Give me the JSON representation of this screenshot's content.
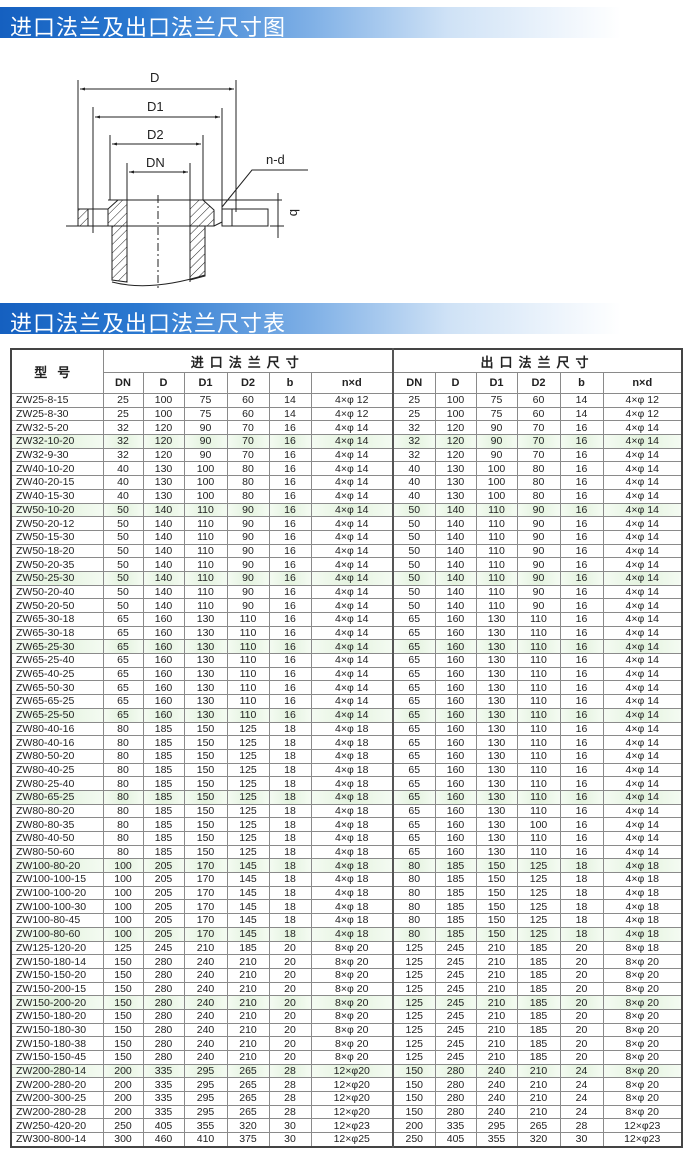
{
  "section1": {
    "title": "进口法兰及出口法兰尺寸图"
  },
  "diagram": {
    "labels": {
      "D": "D",
      "D1": "D1",
      "D2": "D2",
      "DN": "DN",
      "nd": "n-d",
      "b": "b"
    }
  },
  "section2": {
    "title": "进口法兰及出口法兰尺寸表"
  },
  "colors": {
    "banner": "#1560c0",
    "highlight_row": "#e4f3df"
  },
  "table": {
    "model_header": "型号",
    "inlet_header": "进口法兰尺寸",
    "outlet_header": "出口法兰尺寸",
    "columns": [
      "DN",
      "D",
      "D1",
      "D2",
      "b",
      "n×d",
      "DN",
      "D",
      "D1",
      "D2",
      "b",
      "n×d"
    ],
    "rows": [
      [
        "ZW25-8-15",
        "25",
        "100",
        "75",
        "60",
        "14",
        "4×φ 12",
        "25",
        "100",
        "75",
        "60",
        "14",
        "4×φ 12"
      ],
      [
        "ZW25-8-30",
        "25",
        "100",
        "75",
        "60",
        "14",
        "4×φ 12",
        "25",
        "100",
        "75",
        "60",
        "14",
        "4×φ 12"
      ],
      [
        "ZW32-5-20",
        "32",
        "120",
        "90",
        "70",
        "16",
        "4×φ 14",
        "32",
        "120",
        "90",
        "70",
        "16",
        "4×φ 14"
      ],
      [
        "ZW32-10-20",
        "32",
        "120",
        "90",
        "70",
        "16",
        "4×φ 14",
        "32",
        "120",
        "90",
        "70",
        "16",
        "4×φ 14"
      ],
      [
        "ZW32-9-30",
        "32",
        "120",
        "90",
        "70",
        "16",
        "4×φ 14",
        "32",
        "120",
        "90",
        "70",
        "16",
        "4×φ 14"
      ],
      [
        "ZW40-10-20",
        "40",
        "130",
        "100",
        "80",
        "16",
        "4×φ 14",
        "40",
        "130",
        "100",
        "80",
        "16",
        "4×φ 14"
      ],
      [
        "ZW40-20-15",
        "40",
        "130",
        "100",
        "80",
        "16",
        "4×φ 14",
        "40",
        "130",
        "100",
        "80",
        "16",
        "4×φ 14"
      ],
      [
        "ZW40-15-30",
        "40",
        "130",
        "100",
        "80",
        "16",
        "4×φ 14",
        "40",
        "130",
        "100",
        "80",
        "16",
        "4×φ 14"
      ],
      [
        "ZW50-10-20",
        "50",
        "140",
        "110",
        "90",
        "16",
        "4×φ 14",
        "50",
        "140",
        "110",
        "90",
        "16",
        "4×φ 14"
      ],
      [
        "ZW50-20-12",
        "50",
        "140",
        "110",
        "90",
        "16",
        "4×φ 14",
        "50",
        "140",
        "110",
        "90",
        "16",
        "4×φ 14"
      ],
      [
        "ZW50-15-30",
        "50",
        "140",
        "110",
        "90",
        "16",
        "4×φ 14",
        "50",
        "140",
        "110",
        "90",
        "16",
        "4×φ 14"
      ],
      [
        "ZW50-18-20",
        "50",
        "140",
        "110",
        "90",
        "16",
        "4×φ 14",
        "50",
        "140",
        "110",
        "90",
        "16",
        "4×φ 14"
      ],
      [
        "ZW50-20-35",
        "50",
        "140",
        "110",
        "90",
        "16",
        "4×φ 14",
        "50",
        "140",
        "110",
        "90",
        "16",
        "4×φ 14"
      ],
      [
        "ZW50-25-30",
        "50",
        "140",
        "110",
        "90",
        "16",
        "4×φ 14",
        "50",
        "140",
        "110",
        "90",
        "16",
        "4×φ 14"
      ],
      [
        "ZW50-20-40",
        "50",
        "140",
        "110",
        "90",
        "16",
        "4×φ 14",
        "50",
        "140",
        "110",
        "90",
        "16",
        "4×φ 14"
      ],
      [
        "ZW50-20-50",
        "50",
        "140",
        "110",
        "90",
        "16",
        "4×φ 14",
        "50",
        "140",
        "110",
        "90",
        "16",
        "4×φ 14"
      ],
      [
        "ZW65-30-18",
        "65",
        "160",
        "130",
        "110",
        "16",
        "4×φ 14",
        "65",
        "160",
        "130",
        "110",
        "16",
        "4×φ 14"
      ],
      [
        "ZW65-30-18",
        "65",
        "160",
        "130",
        "110",
        "16",
        "4×φ 14",
        "65",
        "160",
        "130",
        "110",
        "16",
        "4×φ 14"
      ],
      [
        "ZW65-25-30",
        "65",
        "160",
        "130",
        "110",
        "16",
        "4×φ 14",
        "65",
        "160",
        "130",
        "110",
        "16",
        "4×φ 14"
      ],
      [
        "ZW65-25-40",
        "65",
        "160",
        "130",
        "110",
        "16",
        "4×φ 14",
        "65",
        "160",
        "130",
        "110",
        "16",
        "4×φ 14"
      ],
      [
        "ZW65-40-25",
        "65",
        "160",
        "130",
        "110",
        "16",
        "4×φ 14",
        "65",
        "160",
        "130",
        "110",
        "16",
        "4×φ 14"
      ],
      [
        "ZW65-50-30",
        "65",
        "160",
        "130",
        "110",
        "16",
        "4×φ 14",
        "65",
        "160",
        "130",
        "110",
        "16",
        "4×φ 14"
      ],
      [
        "ZW65-65-25",
        "65",
        "160",
        "130",
        "110",
        "16",
        "4×φ 14",
        "65",
        "160",
        "130",
        "110",
        "16",
        "4×φ 14"
      ],
      [
        "ZW65-25-50",
        "65",
        "160",
        "130",
        "110",
        "16",
        "4×φ 14",
        "65",
        "160",
        "130",
        "110",
        "16",
        "4×φ 14"
      ],
      [
        "ZW80-40-16",
        "80",
        "185",
        "150",
        "125",
        "18",
        "4×φ 18",
        "65",
        "160",
        "130",
        "110",
        "16",
        "4×φ 14"
      ],
      [
        "ZW80-40-16",
        "80",
        "185",
        "150",
        "125",
        "18",
        "4×φ 18",
        "65",
        "160",
        "130",
        "110",
        "16",
        "4×φ 14"
      ],
      [
        "ZW80-50-20",
        "80",
        "185",
        "150",
        "125",
        "18",
        "4×φ 18",
        "65",
        "160",
        "130",
        "110",
        "16",
        "4×φ 14"
      ],
      [
        "ZW80-40-25",
        "80",
        "185",
        "150",
        "125",
        "18",
        "4×φ 18",
        "65",
        "160",
        "130",
        "110",
        "16",
        "4×φ 14"
      ],
      [
        "ZW80-25-40",
        "80",
        "185",
        "150",
        "125",
        "18",
        "4×φ 18",
        "65",
        "160",
        "130",
        "110",
        "16",
        "4×φ 14"
      ],
      [
        "ZW80-65-25",
        "80",
        "185",
        "150",
        "125",
        "18",
        "4×φ 18",
        "65",
        "160",
        "130",
        "110",
        "16",
        "4×φ 14"
      ],
      [
        "ZW80-80-20",
        "80",
        "185",
        "150",
        "125",
        "18",
        "4×φ 18",
        "65",
        "160",
        "130",
        "110",
        "16",
        "4×φ 14"
      ],
      [
        "ZW80-80-35",
        "80",
        "185",
        "150",
        "125",
        "18",
        "4×φ 18",
        "65",
        "160",
        "130",
        "100",
        "16",
        "4×φ 14"
      ],
      [
        "ZW80-40-50",
        "80",
        "185",
        "150",
        "125",
        "18",
        "4×φ 18",
        "65",
        "160",
        "130",
        "110",
        "16",
        "4×φ 14"
      ],
      [
        "ZW80-50-60",
        "80",
        "185",
        "150",
        "125",
        "18",
        "4×φ 18",
        "65",
        "160",
        "130",
        "110",
        "16",
        "4×φ 14"
      ],
      [
        "ZW100-80-20",
        "100",
        "205",
        "170",
        "145",
        "18",
        "4×φ 18",
        "80",
        "185",
        "150",
        "125",
        "18",
        "4×φ 18"
      ],
      [
        "ZW100-100-15",
        "100",
        "205",
        "170",
        "145",
        "18",
        "4×φ 18",
        "80",
        "185",
        "150",
        "125",
        "18",
        "4×φ 18"
      ],
      [
        "ZW100-100-20",
        "100",
        "205",
        "170",
        "145",
        "18",
        "4×φ 18",
        "80",
        "185",
        "150",
        "125",
        "18",
        "4×φ 18"
      ],
      [
        "ZW100-100-30",
        "100",
        "205",
        "170",
        "145",
        "18",
        "4×φ 18",
        "80",
        "185",
        "150",
        "125",
        "18",
        "4×φ 18"
      ],
      [
        "ZW100-80-45",
        "100",
        "205",
        "170",
        "145",
        "18",
        "4×φ 18",
        "80",
        "185",
        "150",
        "125",
        "18",
        "4×φ 18"
      ],
      [
        "ZW100-80-60",
        "100",
        "205",
        "170",
        "145",
        "18",
        "4×φ 18",
        "80",
        "185",
        "150",
        "125",
        "18",
        "4×φ 18"
      ],
      [
        "ZW125-120-20",
        "125",
        "245",
        "210",
        "185",
        "20",
        "8×φ 20",
        "125",
        "245",
        "210",
        "185",
        "20",
        "8×φ 18"
      ],
      [
        "ZW150-180-14",
        "150",
        "280",
        "240",
        "210",
        "20",
        "8×φ 20",
        "125",
        "245",
        "210",
        "185",
        "20",
        "8×φ 20"
      ],
      [
        "ZW150-150-20",
        "150",
        "280",
        "240",
        "210",
        "20",
        "8×φ 20",
        "125",
        "245",
        "210",
        "185",
        "20",
        "8×φ 20"
      ],
      [
        "ZW150-200-15",
        "150",
        "280",
        "240",
        "210",
        "20",
        "8×φ 20",
        "125",
        "245",
        "210",
        "185",
        "20",
        "8×φ 20"
      ],
      [
        "ZW150-200-20",
        "150",
        "280",
        "240",
        "210",
        "20",
        "8×φ 20",
        "125",
        "245",
        "210",
        "185",
        "20",
        "8×φ 20"
      ],
      [
        "ZW150-180-20",
        "150",
        "280",
        "240",
        "210",
        "20",
        "8×φ 20",
        "125",
        "245",
        "210",
        "185",
        "20",
        "8×φ 20"
      ],
      [
        "ZW150-180-30",
        "150",
        "280",
        "240",
        "210",
        "20",
        "8×φ 20",
        "125",
        "245",
        "210",
        "185",
        "20",
        "8×φ 20"
      ],
      [
        "ZW150-180-38",
        "150",
        "280",
        "240",
        "210",
        "20",
        "8×φ 20",
        "125",
        "245",
        "210",
        "185",
        "20",
        "8×φ 20"
      ],
      [
        "ZW150-150-45",
        "150",
        "280",
        "240",
        "210",
        "20",
        "8×φ 20",
        "125",
        "245",
        "210",
        "185",
        "20",
        "8×φ 20"
      ],
      [
        "ZW200-280-14",
        "200",
        "335",
        "295",
        "265",
        "28",
        "12×φ20",
        "150",
        "280",
        "240",
        "210",
        "24",
        "8×φ 20"
      ],
      [
        "ZW200-280-20",
        "200",
        "335",
        "295",
        "265",
        "28",
        "12×φ20",
        "150",
        "280",
        "240",
        "210",
        "24",
        "8×φ 20"
      ],
      [
        "ZW200-300-25",
        "200",
        "335",
        "295",
        "265",
        "28",
        "12×φ20",
        "150",
        "280",
        "240",
        "210",
        "24",
        "8×φ 20"
      ],
      [
        "ZW200-280-28",
        "200",
        "335",
        "295",
        "265",
        "28",
        "12×φ20",
        "150",
        "280",
        "240",
        "210",
        "24",
        "8×φ 20"
      ],
      [
        "ZW250-420-20",
        "250",
        "405",
        "355",
        "320",
        "30",
        "12×φ23",
        "200",
        "335",
        "295",
        "265",
        "28",
        "12×φ23"
      ],
      [
        "ZW300-800-14",
        "300",
        "460",
        "410",
        "375",
        "30",
        "12×φ25",
        "250",
        "405",
        "355",
        "320",
        "30",
        "12×φ23"
      ]
    ]
  }
}
